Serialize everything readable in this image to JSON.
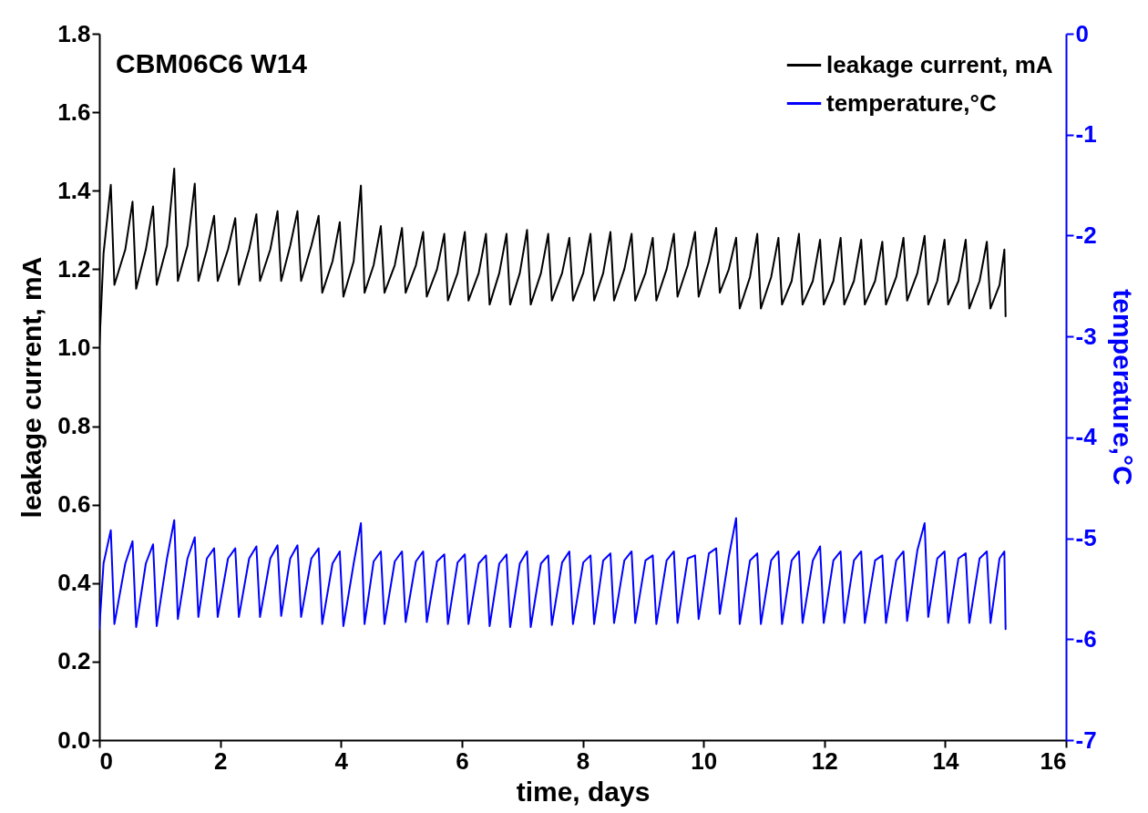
{
  "chart_data": {
    "type": "line",
    "title": "CBM06C6 W14",
    "xlabel": "time, days",
    "ylabel": "leakage current, mA",
    "y2label": "temperature,°C",
    "xlim": [
      0,
      16
    ],
    "xticks": [
      0,
      2,
      4,
      6,
      8,
      10,
      12,
      14,
      16
    ],
    "ylim": [
      0,
      1.8
    ],
    "yticks": [
      {
        "value": 0,
        "label": "0.0"
      },
      0.2,
      0.4,
      0.6,
      0.8,
      {
        "value": 1,
        "label": "1.0"
      },
      1.2,
      1.4,
      1.6,
      1.8
    ],
    "y2lim": [
      -7,
      0
    ],
    "y2ticks": [
      -7,
      -6,
      -5,
      -4,
      -3,
      -2,
      -1,
      0
    ],
    "legend": "top right",
    "grid": false,
    "series": [
      {
        "name": "leakage current, mA",
        "color": "#000000",
        "x": [
          0,
          0.07,
          0.19,
          0.25,
          0.43,
          0.55,
          0.61,
          0.77,
          0.89,
          0.95,
          1.12,
          1.24,
          1.3,
          1.46,
          1.58,
          1.64,
          1.78,
          1.9,
          1.96,
          2.13,
          2.25,
          2.31,
          2.48,
          2.6,
          2.66,
          2.83,
          2.95,
          3.01,
          3.16,
          3.28,
          3.34,
          3.51,
          3.63,
          3.69,
          3.86,
          3.98,
          4.04,
          4.21,
          4.33,
          4.39,
          4.54,
          4.66,
          4.72,
          4.89,
          5.01,
          5.07,
          5.24,
          5.36,
          5.42,
          5.59,
          5.71,
          5.77,
          5.93,
          6.05,
          6.11,
          6.28,
          6.4,
          6.46,
          6.62,
          6.74,
          6.8,
          6.96,
          7.08,
          7.14,
          7.31,
          7.43,
          7.49,
          7.66,
          7.78,
          7.84,
          8.01,
          8.13,
          8.19,
          8.34,
          8.46,
          8.52,
          8.69,
          8.81,
          8.87,
          9.04,
          9.16,
          9.22,
          9.39,
          9.51,
          9.57,
          9.74,
          9.86,
          9.92,
          10.09,
          10.21,
          10.27,
          10.42,
          10.54,
          10.6,
          10.77,
          10.89,
          10.95,
          11.12,
          11.24,
          11.3,
          11.46,
          11.58,
          11.64,
          11.81,
          11.93,
          11.99,
          12.15,
          12.27,
          12.33,
          12.49,
          12.61,
          12.67,
          12.84,
          12.96,
          13.02,
          13.19,
          13.31,
          13.37,
          13.54,
          13.66,
          13.72,
          13.87,
          13.99,
          14.05,
          14.22,
          14.34,
          14.4,
          14.57,
          14.69,
          14.75,
          14.9,
          14.98,
          15.0
        ],
        "values": [
          1.0,
          1.24,
          1.415,
          1.16,
          1.25,
          1.372,
          1.15,
          1.25,
          1.36,
          1.16,
          1.26,
          1.456,
          1.17,
          1.26,
          1.418,
          1.17,
          1.25,
          1.336,
          1.17,
          1.25,
          1.33,
          1.16,
          1.25,
          1.34,
          1.17,
          1.25,
          1.348,
          1.17,
          1.26,
          1.348,
          1.17,
          1.26,
          1.336,
          1.14,
          1.22,
          1.32,
          1.13,
          1.22,
          1.413,
          1.14,
          1.21,
          1.31,
          1.14,
          1.21,
          1.305,
          1.14,
          1.21,
          1.295,
          1.13,
          1.2,
          1.29,
          1.12,
          1.19,
          1.295,
          1.12,
          1.19,
          1.29,
          1.11,
          1.19,
          1.29,
          1.11,
          1.19,
          1.3,
          1.11,
          1.19,
          1.29,
          1.12,
          1.19,
          1.28,
          1.12,
          1.19,
          1.29,
          1.12,
          1.19,
          1.295,
          1.12,
          1.2,
          1.29,
          1.12,
          1.19,
          1.28,
          1.12,
          1.2,
          1.29,
          1.13,
          1.21,
          1.295,
          1.13,
          1.22,
          1.305,
          1.14,
          1.2,
          1.28,
          1.1,
          1.18,
          1.29,
          1.1,
          1.18,
          1.28,
          1.11,
          1.17,
          1.29,
          1.11,
          1.17,
          1.275,
          1.11,
          1.17,
          1.28,
          1.11,
          1.17,
          1.275,
          1.11,
          1.17,
          1.27,
          1.11,
          1.18,
          1.28,
          1.12,
          1.19,
          1.285,
          1.11,
          1.17,
          1.275,
          1.11,
          1.17,
          1.275,
          1.1,
          1.17,
          1.27,
          1.1,
          1.16,
          1.25,
          1.08
        ]
      },
      {
        "name": "temperature,°C",
        "color": "#0000ff",
        "axis": "y2",
        "x": [
          0,
          0.07,
          0.19,
          0.25,
          0.43,
          0.55,
          0.61,
          0.77,
          0.89,
          0.95,
          1.12,
          1.24,
          1.3,
          1.46,
          1.58,
          1.64,
          1.78,
          1.9,
          1.96,
          2.13,
          2.25,
          2.31,
          2.48,
          2.6,
          2.66,
          2.83,
          2.95,
          3.01,
          3.16,
          3.28,
          3.34,
          3.51,
          3.63,
          3.69,
          3.86,
          3.98,
          4.04,
          4.21,
          4.33,
          4.39,
          4.54,
          4.66,
          4.72,
          4.89,
          5.01,
          5.07,
          5.24,
          5.36,
          5.42,
          5.59,
          5.71,
          5.77,
          5.93,
          6.05,
          6.11,
          6.28,
          6.4,
          6.46,
          6.62,
          6.74,
          6.8,
          6.96,
          7.08,
          7.14,
          7.31,
          7.43,
          7.49,
          7.66,
          7.78,
          7.84,
          8.01,
          8.13,
          8.19,
          8.34,
          8.46,
          8.52,
          8.69,
          8.81,
          8.87,
          9.04,
          9.16,
          9.22,
          9.39,
          9.51,
          9.57,
          9.74,
          9.86,
          9.92,
          10.09,
          10.21,
          10.27,
          10.42,
          10.54,
          10.6,
          10.77,
          10.89,
          10.95,
          11.12,
          11.24,
          11.3,
          11.46,
          11.58,
          11.64,
          11.81,
          11.93,
          11.99,
          12.15,
          12.27,
          12.33,
          12.49,
          12.61,
          12.67,
          12.84,
          12.96,
          13.02,
          13.19,
          13.31,
          13.37,
          13.54,
          13.66,
          13.72,
          13.87,
          13.99,
          14.05,
          14.22,
          14.34,
          14.4,
          14.57,
          14.69,
          14.75,
          14.9,
          14.98,
          15.0
        ],
        "values": [
          -5.9,
          -5.25,
          -4.92,
          -5.85,
          -5.25,
          -5.03,
          -5.88,
          -5.25,
          -5.06,
          -5.87,
          -5.2,
          -4.82,
          -5.8,
          -5.2,
          -4.99,
          -5.78,
          -5.2,
          -5.1,
          -5.78,
          -5.2,
          -5.1,
          -5.78,
          -5.2,
          -5.08,
          -5.78,
          -5.2,
          -5.07,
          -5.77,
          -5.2,
          -5.07,
          -5.78,
          -5.2,
          -5.1,
          -5.85,
          -5.25,
          -5.13,
          -5.87,
          -5.25,
          -4.85,
          -5.85,
          -5.23,
          -5.13,
          -5.85,
          -5.23,
          -5.13,
          -5.83,
          -5.23,
          -5.13,
          -5.83,
          -5.23,
          -5.16,
          -5.85,
          -5.24,
          -5.16,
          -5.85,
          -5.25,
          -5.17,
          -5.87,
          -5.25,
          -5.16,
          -5.88,
          -5.25,
          -5.13,
          -5.88,
          -5.25,
          -5.17,
          -5.86,
          -5.24,
          -5.13,
          -5.85,
          -5.24,
          -5.17,
          -5.85,
          -5.22,
          -5.15,
          -5.84,
          -5.22,
          -5.13,
          -5.84,
          -5.22,
          -5.17,
          -5.85,
          -5.22,
          -5.13,
          -5.84,
          -5.2,
          -5.17,
          -5.8,
          -5.15,
          -5.1,
          -5.75,
          -5.18,
          -4.8,
          -5.85,
          -5.22,
          -5.15,
          -5.85,
          -5.22,
          -5.13,
          -5.85,
          -5.22,
          -5.13,
          -5.84,
          -5.22,
          -5.08,
          -5.84,
          -5.22,
          -5.13,
          -5.84,
          -5.22,
          -5.13,
          -5.84,
          -5.22,
          -5.17,
          -5.84,
          -5.22,
          -5.13,
          -5.82,
          -5.12,
          -4.85,
          -5.78,
          -5.2,
          -5.13,
          -5.84,
          -5.2,
          -5.15,
          -5.84,
          -5.2,
          -5.13,
          -5.84,
          -5.2,
          -5.13,
          -5.9
        ]
      }
    ]
  }
}
